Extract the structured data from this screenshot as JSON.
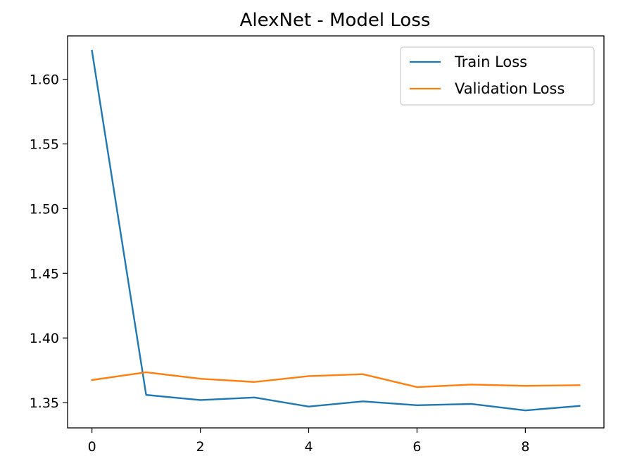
{
  "chart_data": {
    "type": "line",
    "title": "AlexNet - Model Loss",
    "xlabel": "",
    "ylabel": "",
    "x": [
      0,
      1,
      2,
      3,
      4,
      5,
      6,
      7,
      8,
      9
    ],
    "xlim": [
      -0.45,
      9.45
    ],
    "ylim": [
      1.3305,
      1.6335
    ],
    "xticks": [
      0,
      2,
      4,
      6,
      8
    ],
    "xtick_labels": [
      "0",
      "2",
      "4",
      "6",
      "8"
    ],
    "yticks": [
      1.35,
      1.4,
      1.45,
      1.5,
      1.55,
      1.6
    ],
    "ytick_labels": [
      "1.35",
      "1.40",
      "1.45",
      "1.50",
      "1.55",
      "1.60"
    ],
    "grid": false,
    "legend_position": "top-right",
    "series": [
      {
        "name": "Train Loss",
        "color": "#1f77b4",
        "values": [
          1.622,
          1.356,
          1.352,
          1.354,
          1.347,
          1.351,
          1.348,
          1.349,
          1.344,
          1.3475
        ]
      },
      {
        "name": "Validation Loss",
        "color": "#ff7f0e",
        "values": [
          1.3675,
          1.3735,
          1.3685,
          1.366,
          1.3705,
          1.372,
          1.362,
          1.364,
          1.363,
          1.3635
        ]
      }
    ]
  }
}
